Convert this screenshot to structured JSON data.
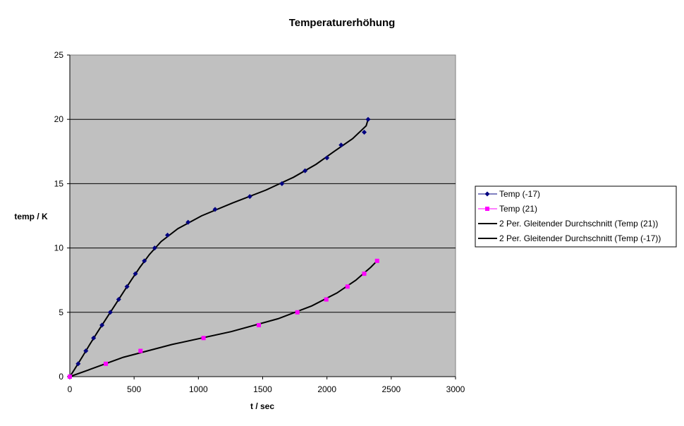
{
  "chart_data": {
    "type": "scatter",
    "title": "Temperaturerhöhung",
    "xlabel": "t / sec",
    "ylabel": "temp / K",
    "xlim": [
      0,
      3000
    ],
    "ylim": [
      0,
      25
    ],
    "x_ticks": [
      0,
      500,
      1000,
      1500,
      2000,
      2500,
      3000
    ],
    "y_ticks": [
      0,
      5,
      10,
      15,
      20,
      25
    ],
    "grid": true,
    "legend_position": "right",
    "plot_background": "#c0c0c0",
    "series": [
      {
        "name": "Temp (-17)",
        "kind": "markers",
        "marker": "diamond",
        "color": "#000080",
        "x": [
          0,
          65,
          125,
          185,
          250,
          315,
          380,
          445,
          510,
          580,
          660,
          760,
          920,
          1130,
          1400,
          1650,
          1830,
          2000,
          2110,
          2290,
          2320
        ],
        "y": [
          0,
          1,
          2,
          3,
          4,
          5,
          6,
          7,
          8,
          9,
          10,
          11,
          12,
          13,
          14,
          15,
          16,
          17,
          18,
          19,
          20
        ]
      },
      {
        "name": "Temp (21)",
        "kind": "markers",
        "marker": "square",
        "color": "#ff00ff",
        "x": [
          0,
          280,
          550,
          1040,
          1470,
          1770,
          1995,
          2160,
          2290,
          2390
        ],
        "y": [
          0,
          1,
          2,
          3,
          4,
          5,
          6,
          7,
          8,
          9
        ]
      },
      {
        "name": "2 Per. Gleitender Durchschnitt (Temp (21))",
        "kind": "line",
        "color": "#000000",
        "of": "Temp (21)"
      },
      {
        "name": "2 Per. Gleitender Durchschnitt (Temp (-17))",
        "kind": "line",
        "color": "#000000",
        "of": "Temp (-17)"
      }
    ]
  }
}
